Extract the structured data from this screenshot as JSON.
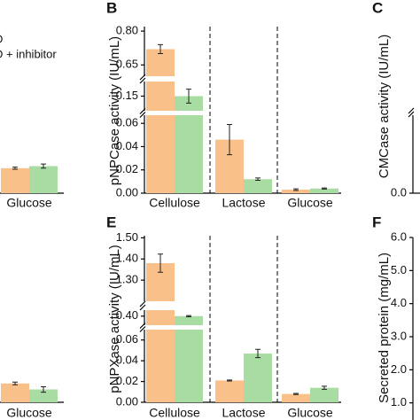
{
  "chart_data": [
    {
      "type": "bar",
      "categories": [
        "Glucose"
      ],
      "series": [
        {
          "name": "D",
          "color": "#f9c189",
          "values": [
            0.12
          ],
          "errors": [
            0.005
          ]
        },
        {
          "name": "D + inhibitor",
          "color": "#a9dca3",
          "values": [
            0.13
          ],
          "errors": [
            0.01
          ]
        }
      ],
      "ylim": [
        0,
        0.8
      ]
    },
    {
      "type": "bar",
      "panel_label": "B",
      "y_label": "pNPCase activity (IU/mL)",
      "categories": [
        "Cellulose",
        "Lactose",
        "Glucose"
      ],
      "series": [
        {
          "color": "#f9c189",
          "values": [
            0.72,
            0.046,
            0.003
          ],
          "errors": [
            0.02,
            0.013,
            0.0007
          ]
        },
        {
          "color": "#a9dca3",
          "values": [
            0.15,
            0.012,
            0.004
          ],
          "errors": [
            0.012,
            0.001,
            0.0005
          ]
        }
      ],
      "y_segments": [
        {
          "ylim": [
            0,
            0.067
          ],
          "yticks": [
            {
              "value": 0,
              "label": "0.00"
            },
            0.02,
            0.04,
            0.06
          ]
        },
        {
          "ylim": [
            0.125,
            0.175
          ],
          "yticks": [
            0.15
          ]
        },
        {
          "ylim": [
            0.6,
            0.82
          ],
          "yticks": [
            0.65,
            {
              "value": 0.8,
              "label": "0.80"
            }
          ]
        }
      ]
    },
    {
      "type": "bar",
      "panel_label": "C",
      "y_label": "CMCase activity (IU/mL)",
      "y_segments": [
        {
          "ylim": [
            0,
            0.1
          ],
          "yticks": [
            {
              "value": 0,
              "label": "0.0"
            }
          ]
        }
      ]
    },
    {
      "type": "bar",
      "categories": [
        "Glucose"
      ],
      "series": [
        {
          "color": "#f9c189",
          "values": [
            0.028
          ],
          "errors": [
            0.002
          ]
        },
        {
          "color": "#a9dca3",
          "values": [
            0.019
          ],
          "errors": [
            0.004
          ]
        }
      ],
      "ylim": [
        0,
        0.25
      ]
    },
    {
      "type": "bar",
      "panel_label": "E",
      "y_label": "pNPXase activity (IU/mL)",
      "categories": [
        "Cellulose",
        "Lactose",
        "Glucose"
      ],
      "series": [
        {
          "color": "#f9c189",
          "values": [
            1.38,
            0.021,
            0.008
          ],
          "errors": [
            0.043,
            0.0005,
            0.0005
          ]
        },
        {
          "color": "#a9dca3",
          "values": [
            0.4,
            0.047,
            0.014
          ],
          "errors": [
            0.001,
            0.004,
            0.0015
          ]
        }
      ],
      "y_segments": [
        {
          "ylim": [
            0,
            0.07
          ],
          "yticks": [
            {
              "value": 0,
              "label": "0.00"
            },
            0.02,
            0.04,
            0.06
          ]
        },
        {
          "ylim": [
            0.385,
            0.41
          ],
          "yticks": [
            {
              "value": 0.4,
              "label": "0.40"
            }
          ]
        },
        {
          "ylim": [
            1.2,
            1.51
          ],
          "yticks": [
            {
              "value": 1.3,
              "label": "1.30"
            },
            {
              "value": 1.4,
              "label": "1.40"
            },
            {
              "value": 1.5,
              "label": "1.50"
            }
          ]
        }
      ]
    },
    {
      "type": "bar",
      "panel_label": "F",
      "y_label": "Secreted protein (mg/mL)",
      "y_segments": [
        {
          "ylim": [
            0,
            6
          ],
          "yticks": [
            {
              "value": 1,
              "label": "1.0"
            },
            {
              "value": 2,
              "label": "2.0"
            },
            {
              "value": 3,
              "label": "3.0"
            },
            {
              "value": 4,
              "label": "4.0"
            },
            {
              "value": 5,
              "label": "5.0"
            },
            {
              "value": 6,
              "label": "6.0"
            }
          ]
        }
      ]
    }
  ]
}
